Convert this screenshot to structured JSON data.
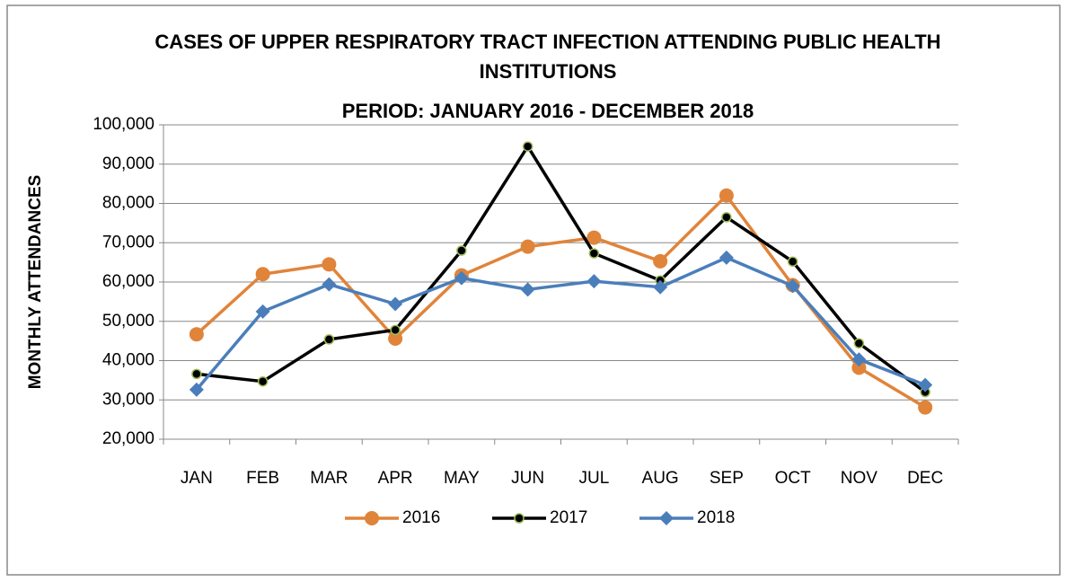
{
  "chart_data": {
    "type": "line",
    "title": "CASES OF UPPER RESPIRATORY TRACT INFECTION ATTENDING PUBLIC HEALTH INSTITUTIONS",
    "subtitle": "PERIOD: JANUARY 2016 - DECEMBER 2018",
    "y_label": "MONTHLY ATTENDANCES",
    "categories": [
      "JAN",
      "FEB",
      "MAR",
      "APR",
      "MAY",
      "JUN",
      "JUL",
      "AUG",
      "SEP",
      "OCT",
      "NOV",
      "DEC"
    ],
    "series": [
      {
        "name": "2016",
        "color": "#e0843a",
        "marker": "circle",
        "values": [
          46700,
          62000,
          64500,
          45600,
          61700,
          69000,
          71300,
          65300,
          82000,
          59200,
          38200,
          28100
        ]
      },
      {
        "name": "2017",
        "color": "#000000",
        "marker": "small-circle",
        "marker_edge_color": "#9bbb59",
        "values": [
          36600,
          34700,
          45400,
          47800,
          68000,
          94500,
          67300,
          60400,
          76500,
          65200,
          44400,
          32000
        ]
      },
      {
        "name": "2018",
        "color": "#4a7ebb",
        "marker": "diamond",
        "values": [
          32600,
          52500,
          59400,
          54400,
          61000,
          58100,
          60200,
          58700,
          66200,
          59000,
          40300,
          33800
        ]
      }
    ],
    "ylim": [
      20000,
      100000
    ],
    "yticks": [
      {
        "value": 20000,
        "label": "20,000"
      },
      {
        "value": 30000,
        "label": "30,000"
      },
      {
        "value": 40000,
        "label": "40,000"
      },
      {
        "value": 50000,
        "label": "50,000"
      },
      {
        "value": 60000,
        "label": "60,000"
      },
      {
        "value": 70000,
        "label": "70,000"
      },
      {
        "value": 80000,
        "label": "80,000"
      },
      {
        "value": 90000,
        "label": "90,000"
      },
      {
        "value": 100000,
        "label": "100,000"
      }
    ],
    "grid": true,
    "legend": "bottom"
  }
}
